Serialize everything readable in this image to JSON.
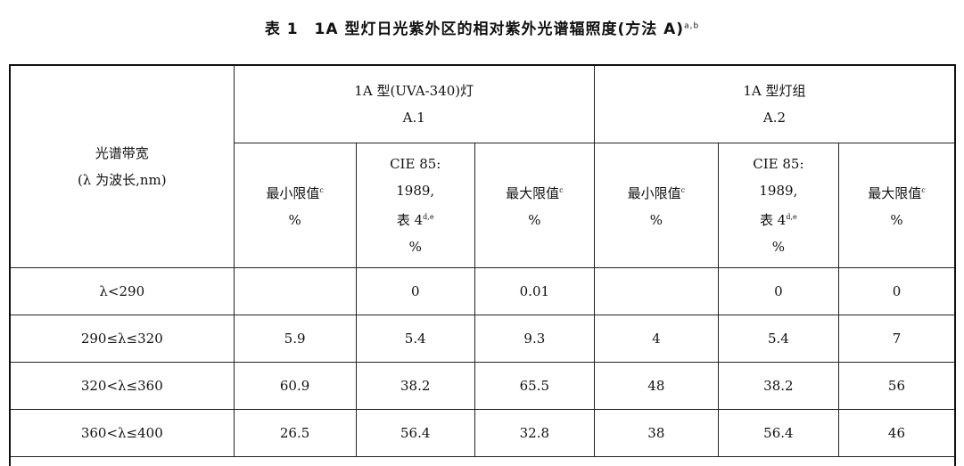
{
  "title": {
    "text": "表 1　1A 型灯日光紫外区的相对紫外光谱辐照度(方法 A)",
    "sup": "a,b"
  },
  "header": {
    "band": [
      "光谱带宽",
      "(λ 为波长,nm)"
    ],
    "group1": [
      "1A 型(UVA-340)灯",
      "A.1"
    ],
    "group2": [
      "1A 型灯组",
      "A.2"
    ],
    "min": "最小限值",
    "min_sup": "c",
    "max": "最大限值",
    "max_sup": "c",
    "cie": [
      "CIE 85:",
      "1989,",
      "表 4"
    ],
    "cie_sup": "d,e",
    "unit": "%"
  },
  "rows": [
    {
      "band": "λ<290",
      "v": [
        "",
        "0",
        "0.01",
        "",
        "0",
        "0"
      ]
    },
    {
      "band": "290≤λ≤320",
      "v": [
        "5.9",
        "5.4",
        "9.3",
        "4",
        "5.4",
        "7"
      ]
    },
    {
      "band": "320<λ≤360",
      "v": [
        "60.9",
        "38.2",
        "65.5",
        "48",
        "38.2",
        "56"
      ]
    },
    {
      "band": "360<λ≤400",
      "v": [
        "26.5",
        "56.4",
        "32.8",
        "38",
        "56.4",
        "46"
      ]
    }
  ]
}
